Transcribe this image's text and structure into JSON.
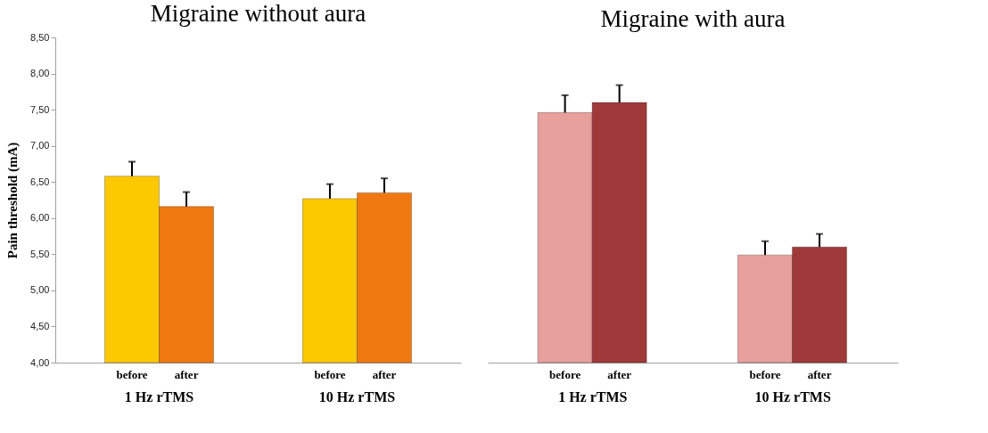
{
  "chart_data": [
    {
      "type": "bar",
      "title": "Migraine without aura",
      "ylabel": "Pain threshold (mA)",
      "categories": [
        "1 Hz rTMS",
        "10 Hz rTMS"
      ],
      "series": [
        {
          "name": "before",
          "color": "#fcc800",
          "values": [
            6.58,
            6.27
          ],
          "errors": [
            [
              6.58,
              6.78
            ],
            [
              6.27,
              6.47
            ]
          ]
        },
        {
          "name": "after",
          "color": "#f07810",
          "values": [
            6.16,
            6.35
          ],
          "errors": [
            [
              6.16,
              6.36
            ],
            [
              6.35,
              6.55
            ]
          ]
        }
      ],
      "ylim": [
        4,
        8.5
      ],
      "yticks": [
        {
          "value": 4,
          "label": "4,00"
        },
        {
          "value": 4.5,
          "label": "4,50"
        },
        {
          "value": 5,
          "label": "5,00"
        },
        {
          "value": 5.5,
          "label": "5,50"
        },
        {
          "value": 6,
          "label": "6,00"
        },
        {
          "value": 6.5,
          "label": "6,50"
        },
        {
          "value": 7,
          "label": "7,00"
        },
        {
          "value": 7.5,
          "label": "7,50"
        },
        {
          "value": 8,
          "label": "8,00"
        },
        {
          "value": 8.5,
          "label": "8,50"
        }
      ],
      "grid": false
    },
    {
      "type": "bar",
      "title": "Migraine with aura",
      "categories": [
        "1 Hz rTMS",
        "10 Hz rTMS"
      ],
      "series": [
        {
          "name": "before",
          "color": "#e8a09c",
          "values": [
            7.46,
            5.49
          ],
          "errors": [
            [
              7.46,
              7.7
            ],
            [
              5.49,
              5.68
            ]
          ]
        },
        {
          "name": "after",
          "color": "#a03a3a",
          "values": [
            7.6,
            5.6
          ],
          "errors": [
            [
              7.6,
              7.84
            ],
            [
              5.6,
              5.78
            ]
          ]
        }
      ],
      "ylim": [
        4,
        8.5
      ],
      "grid": false,
      "tick_labels": "x"
    }
  ]
}
